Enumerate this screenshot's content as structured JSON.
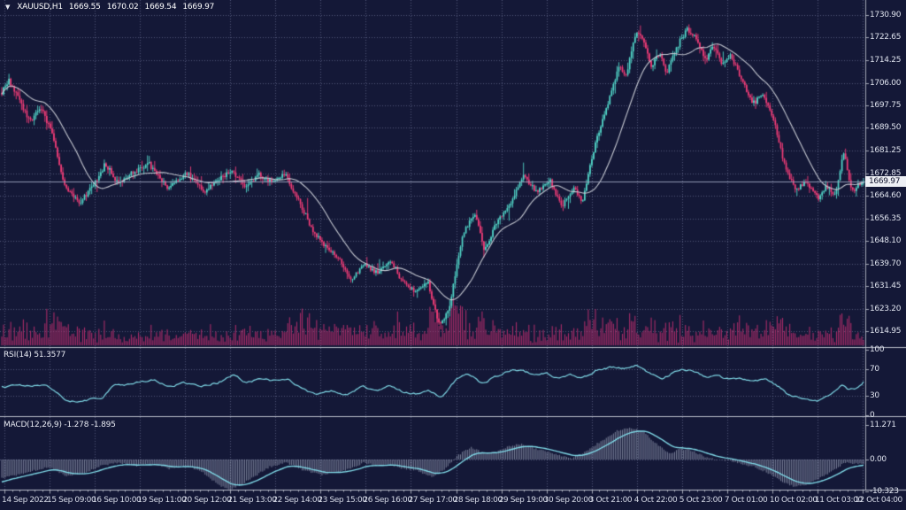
{
  "window": {
    "dropdown_icon": "▼",
    "title_symbol": "XAUUSD,H1"
  },
  "ohlc_line": {
    "open": "1669.55",
    "high": "1670.02",
    "low": "1669.54",
    "close": "1669.97"
  },
  "price_axis": {
    "ticks": [
      "1730.90",
      "1722.65",
      "1714.25",
      "1706.00",
      "1697.75",
      "1689.50",
      "1681.25",
      "1672.85",
      "1664.60",
      "1656.35",
      "1648.10",
      "1639.70",
      "1631.45",
      "1623.20",
      "1614.95"
    ],
    "current": "1669.97"
  },
  "rsi_pane": {
    "label": "RSI(14) 51.3577",
    "ticks": [
      "100",
      "70",
      "30",
      "0"
    ]
  },
  "macd_pane": {
    "label": "MACD(12,26,9) -1.278 -1.895",
    "ticks": [
      "11.271",
      "0.00",
      "-10.323"
    ]
  },
  "time_axis": {
    "labels": [
      "14 Sep 2022",
      "15 Sep 09:00",
      "16 Sep 10:00",
      "19 Sep 11:00",
      "20 Sep 12:00",
      "21 Sep 13:00",
      "22 Sep 14:00",
      "23 Sep 15:00",
      "26 Sep 16:00",
      "27 Sep 17:00",
      "28 Sep 18:00",
      "29 Sep 19:00",
      "30 Sep 20:00",
      "3 Oct 21:00",
      "4 Oct 22:00",
      "5 Oct 23:00",
      "7 Oct 01:00",
      "10 Oct 02:00",
      "11 Oct 03:00",
      "12 Oct 04:00"
    ]
  },
  "colors": {
    "background": "#141837",
    "bull": "#52d7c9",
    "bear": "#f03c77",
    "volume": "#a82c68",
    "ma_line": "#c6c9d2",
    "indicator_line": "#7fd8e6",
    "histogram": "#bec6da",
    "grid": "#9aa2c8",
    "separator": "#b9bdc9",
    "axis_text": "#dfe3ee",
    "price_line": "#9aa2bc",
    "price_tag_bg": "#eef0f5",
    "price_tag_text": "#10132c"
  },
  "chart_data": {
    "type": "candlestick",
    "symbol": "XAUUSD",
    "timeframe": "H1",
    "ohlc_current": {
      "open": 1669.55,
      "high": 1670.02,
      "low": 1669.54,
      "close": 1669.97
    },
    "visible_bars": 480,
    "price_range_visible": [
      1612,
      1733
    ],
    "price_axis_ticks": [
      1730.9,
      1722.65,
      1714.25,
      1706.0,
      1697.75,
      1689.5,
      1681.25,
      1672.85,
      1664.6,
      1656.35,
      1648.1,
      1639.7,
      1631.45,
      1623.2,
      1614.95
    ],
    "time_ticks": [
      "14 Sep 2022",
      "15 Sep 09:00",
      "16 Sep 10:00",
      "19 Sep 11:00",
      "20 Sep 12:00",
      "21 Sep 13:00",
      "22 Sep 14:00",
      "23 Sep 15:00",
      "26 Sep 16:00",
      "27 Sep 17:00",
      "28 Sep 18:00",
      "29 Sep 19:00",
      "30 Sep 20:00",
      "3 Oct 21:00",
      "4 Oct 22:00",
      "5 Oct 23:00",
      "7 Oct 01:00",
      "10 Oct 02:00",
      "11 Oct 03:00",
      "12 Oct 04:00"
    ],
    "close_path_anchors": [
      [
        0.0,
        1703
      ],
      [
        0.008,
        1707
      ],
      [
        0.02,
        1700
      ],
      [
        0.032,
        1692
      ],
      [
        0.045,
        1697
      ],
      [
        0.058,
        1688
      ],
      [
        0.072,
        1669
      ],
      [
        0.09,
        1662
      ],
      [
        0.105,
        1668
      ],
      [
        0.12,
        1676
      ],
      [
        0.135,
        1669
      ],
      [
        0.152,
        1673
      ],
      [
        0.17,
        1677
      ],
      [
        0.193,
        1667
      ],
      [
        0.215,
        1673
      ],
      [
        0.235,
        1666
      ],
      [
        0.253,
        1671
      ],
      [
        0.268,
        1674
      ],
      [
        0.283,
        1668
      ],
      [
        0.298,
        1673
      ],
      [
        0.313,
        1670
      ],
      [
        0.33,
        1672
      ],
      [
        0.345,
        1663
      ],
      [
        0.36,
        1652
      ],
      [
        0.376,
        1646
      ],
      [
        0.392,
        1641
      ],
      [
        0.406,
        1633
      ],
      [
        0.42,
        1640
      ],
      [
        0.436,
        1636
      ],
      [
        0.45,
        1641
      ],
      [
        0.466,
        1633
      ],
      [
        0.48,
        1629
      ],
      [
        0.494,
        1633
      ],
      [
        0.508,
        1617
      ],
      [
        0.52,
        1624
      ],
      [
        0.535,
        1651
      ],
      [
        0.549,
        1658
      ],
      [
        0.56,
        1644
      ],
      [
        0.575,
        1655
      ],
      [
        0.59,
        1662
      ],
      [
        0.606,
        1672
      ],
      [
        0.62,
        1666
      ],
      [
        0.636,
        1670
      ],
      [
        0.65,
        1661
      ],
      [
        0.664,
        1667
      ],
      [
        0.673,
        1662
      ],
      [
        0.69,
        1685
      ],
      [
        0.706,
        1701
      ],
      [
        0.716,
        1712
      ],
      [
        0.724,
        1708
      ],
      [
        0.736,
        1725
      ],
      [
        0.746,
        1721
      ],
      [
        0.753,
        1712
      ],
      [
        0.763,
        1717
      ],
      [
        0.772,
        1710
      ],
      [
        0.783,
        1719
      ],
      [
        0.795,
        1726
      ],
      [
        0.806,
        1722
      ],
      [
        0.816,
        1714
      ],
      [
        0.826,
        1720
      ],
      [
        0.836,
        1713
      ],
      [
        0.846,
        1716
      ],
      [
        0.858,
        1708
      ],
      [
        0.871,
        1698
      ],
      [
        0.884,
        1702
      ],
      [
        0.897,
        1691
      ],
      [
        0.91,
        1674
      ],
      [
        0.922,
        1667
      ],
      [
        0.934,
        1670
      ],
      [
        0.947,
        1664
      ],
      [
        0.958,
        1668
      ],
      [
        0.968,
        1665
      ],
      [
        0.977,
        1681
      ],
      [
        0.986,
        1666
      ],
      [
        1.0,
        1669.97
      ]
    ],
    "ma": {
      "period": 24
    },
    "volume": {
      "amplitude_anchors": [
        [
          0,
          0.85
        ],
        [
          0.07,
          1.3
        ],
        [
          0.15,
          0.75
        ],
        [
          0.27,
          1.1
        ],
        [
          0.36,
          1.5
        ],
        [
          0.45,
          1.3
        ],
        [
          0.52,
          1.4
        ],
        [
          0.6,
          0.9
        ],
        [
          0.67,
          1.0
        ],
        [
          0.73,
          1.2
        ],
        [
          0.8,
          0.9
        ],
        [
          0.87,
          1.2
        ],
        [
          0.93,
          1.0
        ],
        [
          1,
          0.9
        ]
      ]
    },
    "rsi": {
      "period": 14,
      "current": 51.3577,
      "levels": [
        70,
        30
      ],
      "range": [
        0,
        100
      ],
      "anchors": [
        [
          0.0,
          42
        ],
        [
          0.015,
          48
        ],
        [
          0.035,
          44
        ],
        [
          0.052,
          46
        ],
        [
          0.065,
          30
        ],
        [
          0.075,
          21
        ],
        [
          0.09,
          20
        ],
        [
          0.103,
          26
        ],
        [
          0.115,
          23
        ],
        [
          0.128,
          50
        ],
        [
          0.142,
          45
        ],
        [
          0.16,
          52
        ],
        [
          0.176,
          55
        ],
        [
          0.192,
          42
        ],
        [
          0.21,
          50
        ],
        [
          0.23,
          44
        ],
        [
          0.25,
          50
        ],
        [
          0.268,
          62
        ],
        [
          0.282,
          48
        ],
        [
          0.3,
          58
        ],
        [
          0.315,
          52
        ],
        [
          0.33,
          55
        ],
        [
          0.347,
          40
        ],
        [
          0.362,
          32
        ],
        [
          0.38,
          38
        ],
        [
          0.4,
          30
        ],
        [
          0.416,
          45
        ],
        [
          0.432,
          38
        ],
        [
          0.45,
          45
        ],
        [
          0.466,
          34
        ],
        [
          0.482,
          32
        ],
        [
          0.496,
          38
        ],
        [
          0.508,
          25
        ],
        [
          0.525,
          55
        ],
        [
          0.54,
          65
        ],
        [
          0.556,
          48
        ],
        [
          0.572,
          60
        ],
        [
          0.586,
          67
        ],
        [
          0.6,
          70
        ],
        [
          0.615,
          62
        ],
        [
          0.63,
          65
        ],
        [
          0.645,
          55
        ],
        [
          0.66,
          62
        ],
        [
          0.672,
          56
        ],
        [
          0.69,
          70
        ],
        [
          0.706,
          74
        ],
        [
          0.72,
          70
        ],
        [
          0.736,
          76
        ],
        [
          0.752,
          62
        ],
        [
          0.765,
          55
        ],
        [
          0.777,
          65
        ],
        [
          0.79,
          70
        ],
        [
          0.802,
          67
        ],
        [
          0.815,
          58
        ],
        [
          0.827,
          62
        ],
        [
          0.84,
          55
        ],
        [
          0.855,
          57
        ],
        [
          0.87,
          52
        ],
        [
          0.885,
          55
        ],
        [
          0.898,
          45
        ],
        [
          0.91,
          32
        ],
        [
          0.922,
          27
        ],
        [
          0.934,
          25
        ],
        [
          0.945,
          21
        ],
        [
          0.955,
          30
        ],
        [
          0.965,
          35
        ],
        [
          0.973,
          48
        ],
        [
          0.981,
          38
        ],
        [
          0.991,
          41
        ],
        [
          1.0,
          51.36
        ]
      ]
    },
    "macd": {
      "fast": 12,
      "slow": 26,
      "signal": 9,
      "current_macd": -1.278,
      "current_signal": -1.895,
      "axis_ticks": [
        11.271,
        0.0,
        -10.323
      ],
      "anchors": [
        [
          0.0,
          -6
        ],
        [
          0.025,
          -4.5
        ],
        [
          0.055,
          -2.5
        ],
        [
          0.075,
          -5.5
        ],
        [
          0.095,
          -4.5
        ],
        [
          0.115,
          -2.0
        ],
        [
          0.135,
          -1.0
        ],
        [
          0.155,
          -2.0
        ],
        [
          0.175,
          -1.5
        ],
        [
          0.195,
          -3.0
        ],
        [
          0.215,
          -2.0
        ],
        [
          0.235,
          -4.5
        ],
        [
          0.25,
          -8.0
        ],
        [
          0.265,
          -10.0
        ],
        [
          0.285,
          -7.0
        ],
        [
          0.31,
          -2.5
        ],
        [
          0.33,
          -1.0
        ],
        [
          0.35,
          -3.5
        ],
        [
          0.37,
          -5.0
        ],
        [
          0.39,
          -4.0
        ],
        [
          0.405,
          -3.0
        ],
        [
          0.42,
          -1.0
        ],
        [
          0.435,
          -2.0
        ],
        [
          0.45,
          -1.5
        ],
        [
          0.465,
          -3.0
        ],
        [
          0.48,
          -3.5
        ],
        [
          0.5,
          -5.5
        ],
        [
          0.515,
          -3.0
        ],
        [
          0.53,
          1.5
        ],
        [
          0.545,
          4.0
        ],
        [
          0.56,
          2.0
        ],
        [
          0.575,
          2.5
        ],
        [
          0.59,
          4.5
        ],
        [
          0.605,
          5.0
        ],
        [
          0.62,
          3.5
        ],
        [
          0.635,
          2.5
        ],
        [
          0.65,
          1.0
        ],
        [
          0.662,
          0.5
        ],
        [
          0.675,
          2.0
        ],
        [
          0.695,
          6.0
        ],
        [
          0.715,
          9.5
        ],
        [
          0.73,
          10.5
        ],
        [
          0.745,
          9.0
        ],
        [
          0.76,
          5.0
        ],
        [
          0.775,
          2.0
        ],
        [
          0.788,
          3.5
        ],
        [
          0.8,
          3.0
        ],
        [
          0.815,
          1.0
        ],
        [
          0.83,
          0.0
        ],
        [
          0.845,
          -0.5
        ],
        [
          0.86,
          -1.5
        ],
        [
          0.875,
          -2.5
        ],
        [
          0.89,
          -4.5
        ],
        [
          0.905,
          -7.0
        ],
        [
          0.92,
          -9.0
        ],
        [
          0.935,
          -8.0
        ],
        [
          0.95,
          -6.0
        ],
        [
          0.965,
          -3.5
        ],
        [
          0.978,
          -1.0
        ],
        [
          0.99,
          -1.2
        ],
        [
          1.0,
          -1.278
        ]
      ]
    }
  }
}
